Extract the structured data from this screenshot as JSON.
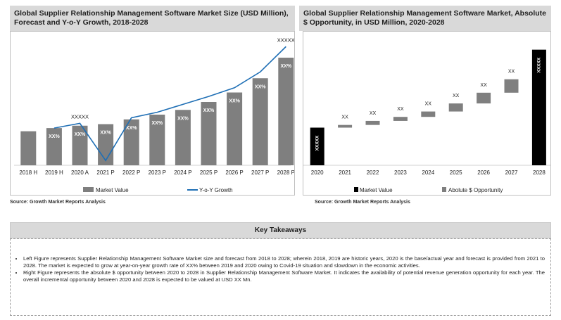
{
  "left_panel": {
    "title": "Global Supplier Relationship Management Software Market Size (USD Million), Forecast and Y-o-Y Growth, 2018-2028",
    "source": "Source: Growth Market Reports Analysis"
  },
  "right_panel": {
    "title": "Global Supplier Relationship Management Software Market, Absolute $ Opportunity, in USD Million, 2020-2028",
    "source": "Source: Growth Market Reports Analysis"
  },
  "key_takeaways": {
    "heading": "Key Takeaways",
    "bullets": [
      "Left Figure represents Supplier Relationship Management Software Market size and forecast from 2018 to 2028; wherein 2018, 2019 are historic years, 2020 is the base/actual year and forecast is provided from 2021 to 2028. The market is expected to grow at year-on-year growth rate of XX% between 2019 and 2020 owing to Covid-19 situation and slowdown in the economic activities.",
      "Right Figure represents the absolute $ opportunity between 2020 to 2028 in Supplier Relationship Management Software Market. It indicates the availability of potential revenue generation opportunity for each year. The overall incremental opportunity between 2020 and 2028 is expected to be valued at USD XX Mn."
    ]
  },
  "colors": {
    "bar": "#7f7f7f",
    "line": "#1f6fb5",
    "base_bar": "#000000",
    "opportunity_bar": "#7f7f7f"
  },
  "chart_data": [
    {
      "type": "bar",
      "categories": [
        "2018 H",
        "2019 H",
        "2020 A",
        "2021 P",
        "2022 P",
        "2023 P",
        "2024 P",
        "2025 P",
        "2026 P",
        "2027 P",
        "2028 P"
      ],
      "series": [
        {
          "name": "Market Value",
          "values": [
            21.5,
            23.5,
            25,
            26,
            29,
            32,
            35,
            40,
            46,
            55,
            68
          ],
          "labels": [
            "",
            "XX%",
            "XX%",
            "XX%",
            "XX%",
            "XX%",
            "XX%",
            "XX%",
            "XX%",
            "XX%",
            "XX%"
          ]
        },
        {
          "name": "Y-o-Y Growth",
          "type": "line",
          "values": [
            null,
            23.5,
            26.5,
            3,
            30,
            33.5,
            38.5,
            43.5,
            49,
            59,
            75
          ]
        }
      ],
      "annotations": [
        {
          "category": "2020 A",
          "text": "XXXXX"
        },
        {
          "category": "2028 P",
          "text": "XXXXX"
        }
      ],
      "ylim": [
        0,
        80
      ],
      "grid": false,
      "legend": "bottom"
    },
    {
      "type": "bar",
      "categories": [
        "2020",
        "2021",
        "2022",
        "2023",
        "2024",
        "2025",
        "2026",
        "2027",
        "2028"
      ],
      "series": [
        {
          "name": "Market Value",
          "bars": [
            {
              "category": "2020",
              "low": 0,
              "high": 28,
              "label": "XXXXX"
            },
            {
              "category": "2028",
              "low": 0,
              "high": 86,
              "label": "XXXXX"
            }
          ]
        },
        {
          "name": "Abolute $ Opportunity",
          "bars": [
            {
              "category": "2021",
              "low": 28,
              "high": 30,
              "label": "XX"
            },
            {
              "category": "2022",
              "low": 30,
              "high": 33,
              "label": "XX"
            },
            {
              "category": "2023",
              "low": 33,
              "high": 36,
              "label": "XX"
            },
            {
              "category": "2024",
              "low": 36,
              "high": 40,
              "label": "XX"
            },
            {
              "category": "2025",
              "low": 40,
              "high": 46,
              "label": "XX"
            },
            {
              "category": "2026",
              "low": 46,
              "high": 54,
              "label": "XX"
            },
            {
              "category": "2027",
              "low": 54,
              "high": 64,
              "label": "XX"
            }
          ]
        }
      ],
      "ylim": [
        0,
        90
      ],
      "grid": false,
      "legend": "bottom"
    }
  ]
}
